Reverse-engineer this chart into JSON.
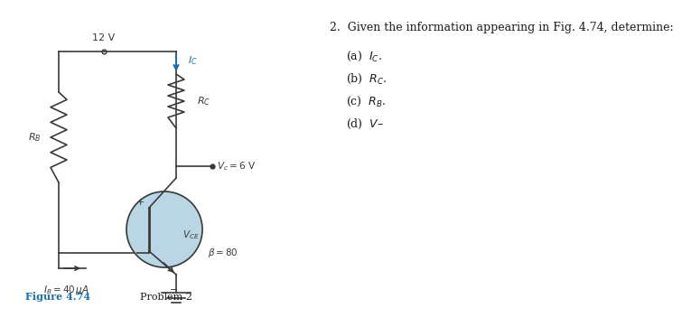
{
  "bg_color": "#ffffff",
  "title_text": "2.  Given the information appearing in Fig. 4.74, determine:",
  "parts": [
    "(a)  $I_C$.",
    "(b)  $R_C$.",
    "(c)  $R_B$.",
    "(d)  $V$–"
  ],
  "figure_label": "Figure 4.74",
  "figure_sublabel": "  Problem 2",
  "label_color": "#1a6fa8",
  "circuit_color": "#3a3a3a",
  "transistor_fill": "#aecfe0",
  "vce_label": "$V_{CE}$",
  "beta_label": "$\\beta = 80$",
  "vc_label": "$V_c = 6$ V",
  "ib_label": "$I_B = 40\\,\\mu$A",
  "ic_label": "$I_C$",
  "rc_label": "$R_C$",
  "rb_label": "$R_B$",
  "vcc_label": "12 V",
  "ic_color": "#1a6fa8"
}
